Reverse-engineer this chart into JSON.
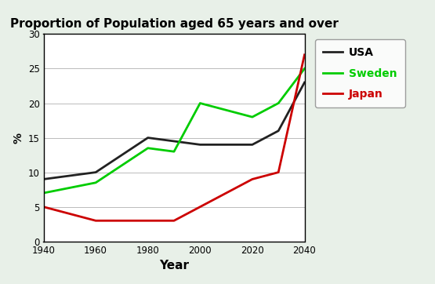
{
  "title": "Proportion of Population aged 65 years and over",
  "xlabel": "Year",
  "ylabel": "%",
  "ylim": [
    0,
    30
  ],
  "xlim": [
    1940,
    2040
  ],
  "xticks": [
    1940,
    1960,
    1980,
    2000,
    2020,
    2040
  ],
  "yticks": [
    0,
    5,
    10,
    15,
    20,
    25,
    30
  ],
  "background_color": "#e8f0e8",
  "plot_bg": "#ffffff",
  "series": [
    {
      "name": "USA",
      "color": "#222222",
      "linewidth": 2.0,
      "years": [
        1940,
        1960,
        1980,
        1990,
        2000,
        2020,
        2030,
        2040
      ],
      "values": [
        9,
        10,
        15,
        14.5,
        14,
        14,
        16,
        23
      ]
    },
    {
      "name": "Sweden",
      "color": "#00cc00",
      "linewidth": 2.0,
      "years": [
        1940,
        1960,
        1980,
        1990,
        2000,
        2020,
        2030,
        2040
      ],
      "values": [
        7,
        8.5,
        13.5,
        13,
        20,
        18,
        20,
        25
      ]
    },
    {
      "name": "Japan",
      "color": "#cc0000",
      "linewidth": 2.0,
      "years": [
        1940,
        1960,
        1980,
        1990,
        2000,
        2020,
        2030,
        2040
      ],
      "values": [
        5,
        3,
        3,
        3,
        5,
        9,
        10,
        27
      ]
    }
  ],
  "legend_colors": [
    "#222222",
    "#00cc00",
    "#cc0000"
  ],
  "legend_labels": [
    "USA",
    "Sweden",
    "Japan"
  ],
  "legend_label_colors": [
    "#000000",
    "#00cc00",
    "#cc0000"
  ],
  "title_fontsize": 11,
  "xlabel_fontsize": 11,
  "ylabel_fontsize": 10,
  "tick_fontsize": 8.5,
  "legend_fontsize": 10
}
